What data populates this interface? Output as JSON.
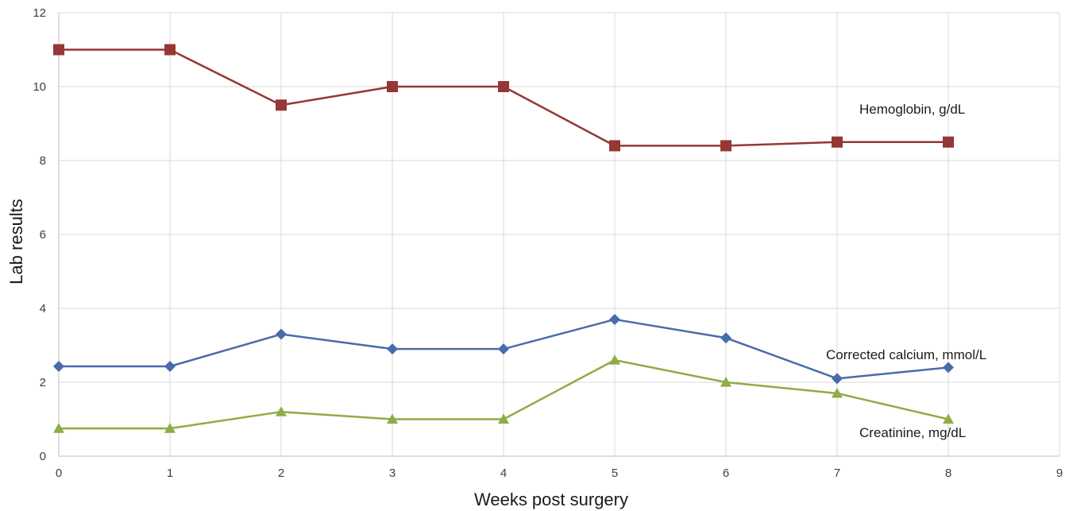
{
  "chart_data": {
    "type": "line",
    "xlabel": "Weeks post surgery",
    "ylabel": "Lab results",
    "xlim": [
      0,
      9
    ],
    "ylim": [
      0,
      12
    ],
    "xticks": [
      "0",
      "1",
      "2",
      "3",
      "4",
      "5",
      "6",
      "7",
      "8",
      "9"
    ],
    "yticks": [
      "0",
      "2",
      "4",
      "6",
      "8",
      "10",
      "12"
    ],
    "grid": true,
    "x": [
      0,
      1,
      2,
      3,
      4,
      5,
      6,
      7,
      8
    ],
    "series": [
      {
        "name": "Hemoglobin, g/dL",
        "color": "#953735",
        "marker": "square",
        "values": [
          11,
          11,
          9.5,
          10,
          10,
          8.4,
          8.4,
          8.5,
          8.5
        ]
      },
      {
        "name": "Corrected calcium, mmol/L",
        "color": "#4a6bab",
        "marker": "diamond",
        "values": [
          2.43,
          2.43,
          3.3,
          2.9,
          2.9,
          3.7,
          3.2,
          2.1,
          2.4
        ]
      },
      {
        "name": "Creatinine, mg/dL",
        "color": "#8fac45",
        "marker": "triangle",
        "values": [
          0.75,
          0.75,
          1.2,
          1.0,
          1.0,
          2.6,
          2.0,
          1.7,
          1.0
        ]
      }
    ]
  }
}
